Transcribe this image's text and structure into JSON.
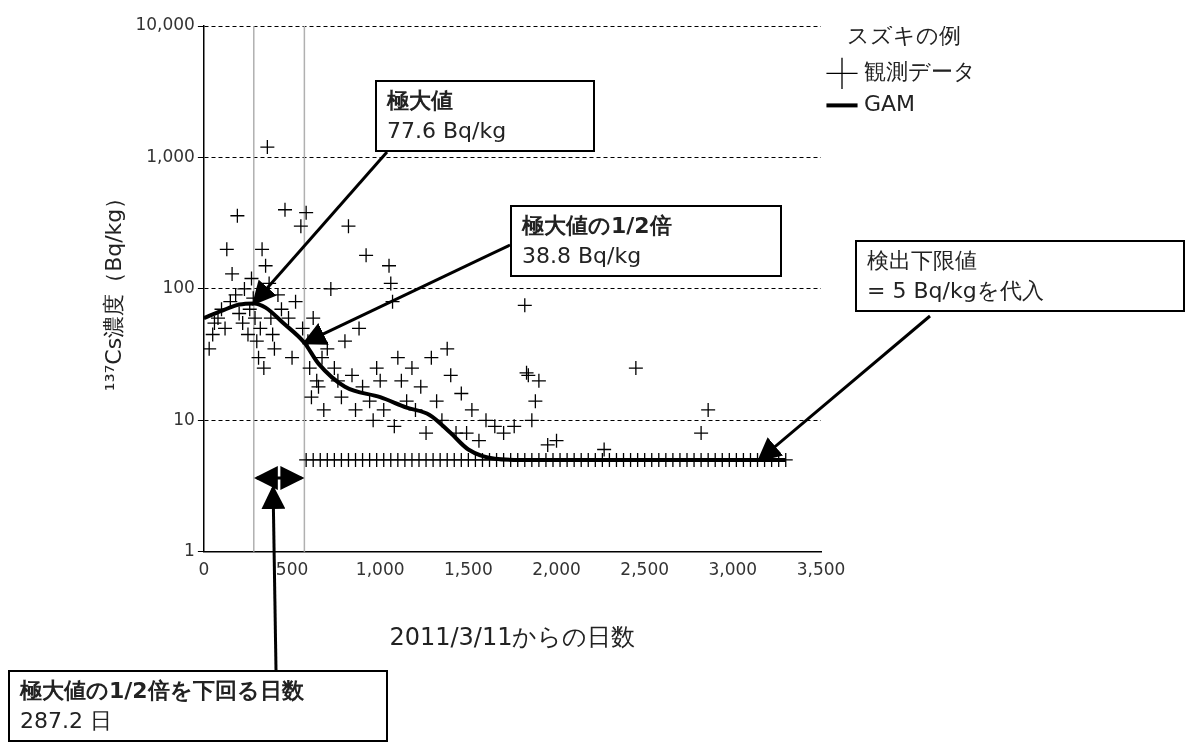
{
  "chart_data": {
    "type": "scatter",
    "xlabel": "2011/3/11からの日数",
    "ylabel": "¹³⁷Cs濃度（Bq/kg）",
    "legend_title": "スズキの例",
    "legend": "top right",
    "log": true,
    "grid": "y",
    "xlim": [
      0,
      3500
    ],
    "xticks": [
      0,
      500,
      {
        "value": 1000,
        "label": "1,000"
      },
      {
        "value": 1500,
        "label": "1,500"
      },
      {
        "value": 2000,
        "label": "2,000"
      },
      {
        "value": 2500,
        "label": "2,500"
      },
      {
        "value": 3000,
        "label": "3,000"
      },
      {
        "value": 3500,
        "label": "3,500"
      }
    ],
    "ylim": [
      1,
      10000
    ],
    "yticks": [
      1,
      10,
      100,
      {
        "value": 1000,
        "label": "1,000"
      },
      {
        "value": 10000,
        "label": "10,000"
      }
    ],
    "series": [
      {
        "name": "観測データ",
        "type": "scatter",
        "color": "#000000",
        "marker": "cross",
        "x": [
          30,
          50,
          60,
          80,
          100,
          120,
          130,
          150,
          160,
          180,
          190,
          200,
          220,
          230,
          250,
          260,
          270,
          280,
          290,
          300,
          310,
          320,
          330,
          340,
          350,
          360,
          370,
          380,
          390,
          400,
          420,
          440,
          460,
          480,
          500,
          520,
          550,
          560,
          580,
          590,
          600,
          610,
          620,
          640,
          650,
          670,
          680,
          700,
          720,
          740,
          760,
          780,
          800,
          820,
          840,
          860,
          880,
          900,
          920,
          940,
          960,
          980,
          1000,
          1020,
          1050,
          1060,
          1070,
          1080,
          1100,
          1120,
          1150,
          1180,
          1200,
          1230,
          1260,
          1290,
          1320,
          1350,
          1380,
          1400,
          1430,
          1460,
          1490,
          1520,
          1560,
          1600,
          1650,
          1700,
          1760,
          1820,
          1830,
          1840,
          1860,
          1880,
          1900,
          1950,
          2000,
          2270,
          2450,
          2820,
          2860,
          580,
          620,
          660,
          700,
          740,
          780,
          820,
          860,
          900,
          940,
          980,
          1020,
          1060,
          1100,
          1140,
          1180,
          1220,
          1260,
          1300,
          1340,
          1380,
          1420,
          1460,
          1500,
          1540,
          1580,
          1620,
          1660,
          1700,
          1740,
          1780,
          1820,
          1860,
          1900,
          1940,
          1980,
          2020,
          2060,
          2100,
          2140,
          2180,
          2220,
          2260,
          2300,
          2340,
          2380,
          2420,
          2460,
          2500,
          2540,
          2580,
          2620,
          2660,
          2700,
          2740,
          2780,
          2820,
          2860,
          2900,
          2940,
          2980,
          3020,
          3060,
          3100,
          3140,
          3180,
          3220,
          3260,
          3300
        ],
        "values": [
          35,
          45,
          55,
          60,
          70,
          50,
          200,
          80,
          130,
          90,
          360,
          65,
          55,
          100,
          45,
          70,
          120,
          85,
          60,
          40,
          30,
          50,
          200,
          25,
          150,
          1200,
          110,
          60,
          45,
          35,
          90,
          70,
          400,
          60,
          30,
          80,
          300,
          50,
          380,
          40,
          25,
          15,
          60,
          20,
          18,
          30,
          12,
          35,
          100,
          25,
          20,
          15,
          40,
          300,
          22,
          12,
          50,
          18,
          180,
          14,
          10,
          25,
          20,
          12,
          150,
          110,
          80,
          9,
          30,
          20,
          14,
          25,
          12,
          18,
          8,
          30,
          14,
          10,
          35,
          22,
          8,
          16,
          8,
          12,
          7,
          10,
          9,
          8,
          9,
          75,
          23,
          22,
          10,
          14,
          20,
          6.5,
          7,
          6,
          25,
          8,
          12,
          5,
          5,
          5,
          5,
          5,
          5,
          5,
          5,
          5,
          5,
          5,
          5,
          5,
          5,
          5,
          5,
          5,
          5,
          5,
          5,
          5,
          5,
          5,
          5,
          5,
          5,
          5,
          5,
          5,
          5,
          5,
          5,
          5,
          5,
          5,
          5,
          5,
          5,
          5,
          5,
          5,
          5,
          5,
          5,
          5,
          5,
          5,
          5,
          5,
          5,
          5,
          5,
          5,
          5,
          5,
          5,
          5,
          5,
          5,
          5,
          5,
          5,
          5,
          5,
          5,
          5,
          5,
          5,
          5
        ]
      },
      {
        "name": "GAM",
        "type": "line",
        "color": "#000000",
        "x": [
          0,
          100,
          200,
          283,
          350,
          450,
          571,
          650,
          800,
          1000,
          1150,
          1280,
          1400,
          1500,
          1650,
          1800,
          3300
        ],
        "values": [
          60,
          68,
          76,
          77.6,
          72,
          55,
          38.8,
          27,
          18,
          15,
          12.5,
          11,
          8,
          6,
          5.1,
          5,
          5
        ]
      }
    ],
    "ref_lines": [
      {
        "axis": "x",
        "value": 283,
        "color": "#b0b0b0"
      },
      {
        "axis": "x",
        "value": 570,
        "color": "#b0b0b0"
      }
    ],
    "annotations": [
      {
        "text": "極大値\n77.6 Bq/kg",
        "x": 283,
        "y": 77.6
      },
      {
        "text": "極大値の1/2倍\n38.8 Bq/kg",
        "x": 571,
        "y": 38.8
      },
      {
        "text": "検出下限値\n= 5 Bq/kgを代入",
        "x": 3150,
        "y": 5
      },
      "極大値の1/2倍を下回る日数\n287.2 日"
    ]
  }
}
